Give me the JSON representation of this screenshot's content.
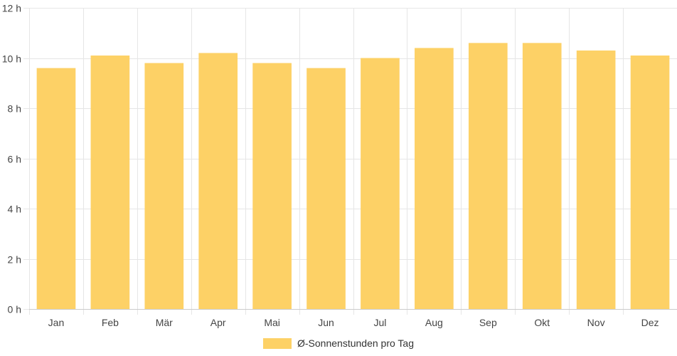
{
  "chart_data": {
    "type": "bar",
    "categories": [
      "Jan",
      "Feb",
      "Mär",
      "Apr",
      "Mai",
      "Jun",
      "Jul",
      "Aug",
      "Sep",
      "Okt",
      "Nov",
      "Dez"
    ],
    "series": [
      {
        "name": "Ø-Sonnenstunden pro Tag",
        "values": [
          9.6,
          10.1,
          9.8,
          10.2,
          9.8,
          9.6,
          10.0,
          10.4,
          10.6,
          10.6,
          10.3,
          10.1
        ],
        "color": "#fdd166"
      }
    ],
    "y_ticks": [
      "0 h",
      "2 h",
      "4 h",
      "6 h",
      "8 h",
      "10 h",
      "12 h"
    ],
    "ylim": [
      0,
      12
    ],
    "grid": true,
    "legend_position": "bottom"
  }
}
